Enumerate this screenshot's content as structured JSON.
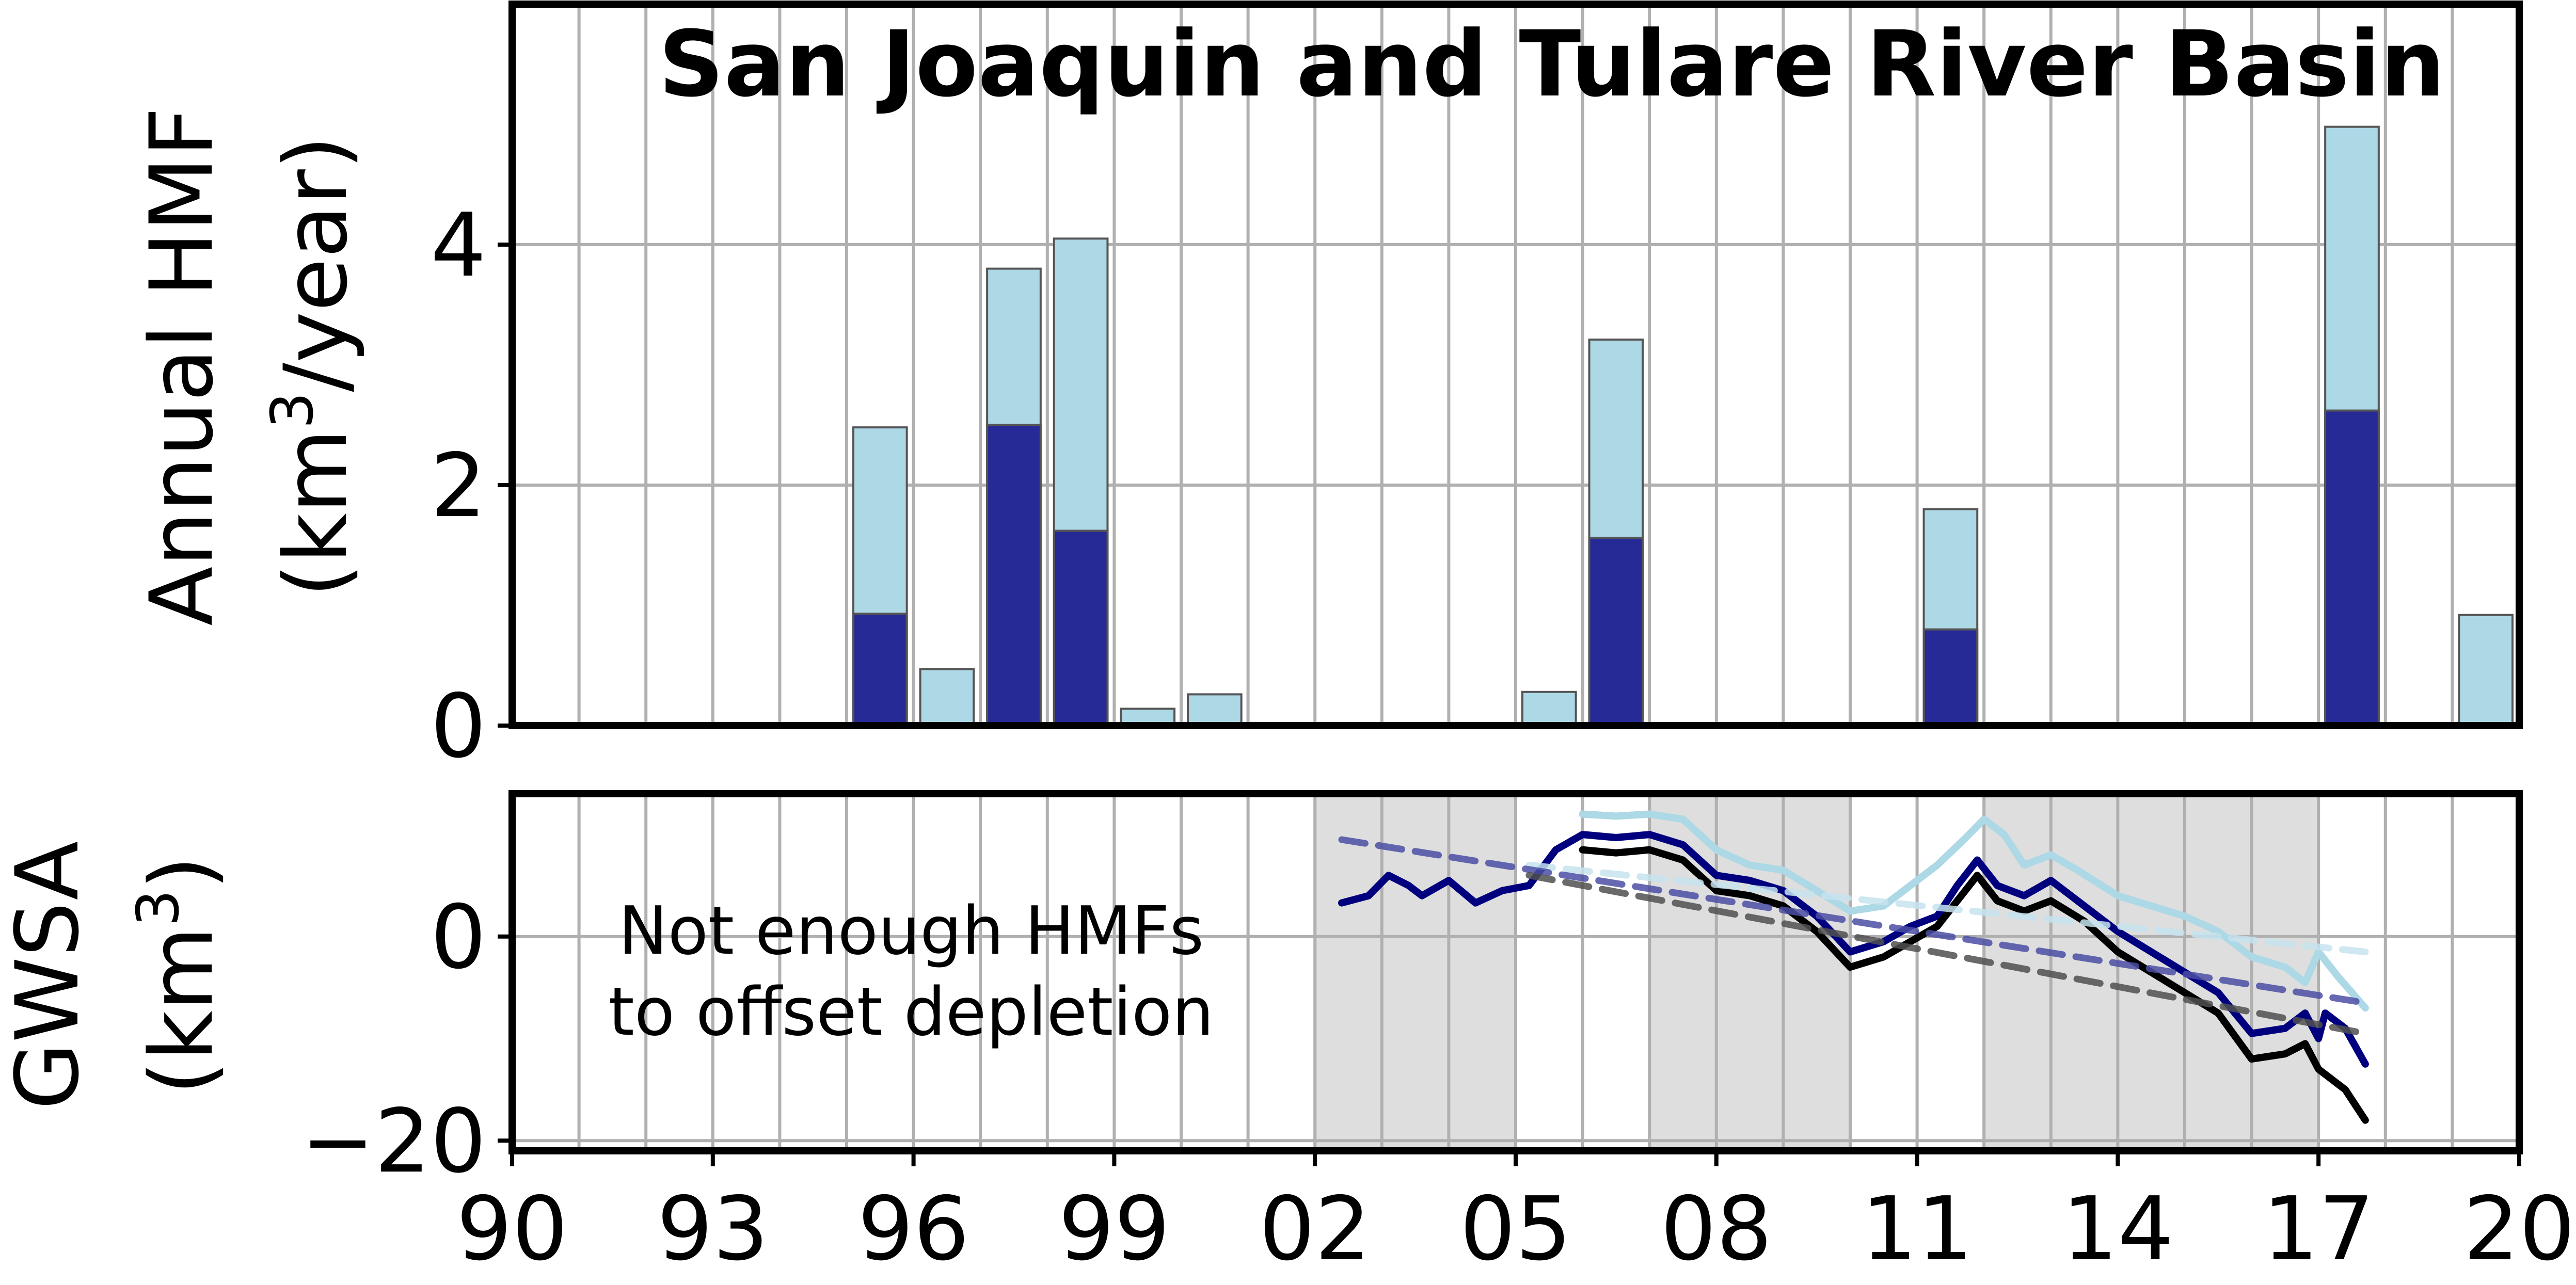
{
  "chart_data": [
    {
      "type": "bar",
      "title": "San Joaquin and Tulare River Basin",
      "ylabel_line1": "Annual HMF",
      "ylabel_line2_prefix": "(km",
      "ylabel_line2_sup": "3",
      "ylabel_line2_suffix": "/year)",
      "ylim": [
        0,
        6
      ],
      "yticks": [
        "0",
        "2",
        "4"
      ],
      "ytick_values": [
        0,
        2,
        4
      ],
      "xlim": [
        1990,
        2020
      ],
      "grid": true,
      "series": [
        {
          "color": "#add8e6",
          "bars": [
            {
              "x": 1995.5,
              "value": 2.48
            },
            {
              "x": 1996.5,
              "value": 0.47
            },
            {
              "x": 1997.5,
              "value": 3.8
            },
            {
              "x": 1998.5,
              "value": 4.05
            },
            {
              "x": 1999.5,
              "value": 0.14
            },
            {
              "x": 2000.5,
              "value": 0.26
            },
            {
              "x": 2005.5,
              "value": 0.28
            },
            {
              "x": 2006.5,
              "value": 3.21
            },
            {
              "x": 2011.5,
              "value": 1.8
            },
            {
              "x": 2017.5,
              "value": 4.98
            },
            {
              "x": 2019.5,
              "value": 0.92
            }
          ]
        },
        {
          "color": "#262a96",
          "bars": [
            {
              "x": 1995.5,
              "value": 0.93
            },
            {
              "x": 1997.5,
              "value": 2.5
            },
            {
              "x": 1998.5,
              "value": 1.62
            },
            {
              "x": 2006.5,
              "value": 1.56
            },
            {
              "x": 2011.5,
              "value": 0.8
            },
            {
              "x": 2017.5,
              "value": 2.62
            }
          ]
        }
      ]
    },
    {
      "type": "line",
      "ylabel_line1": "GWSA",
      "ylabel_line2_prefix": "(km",
      "ylabel_line2_sup": "3",
      "ylabel_line2_suffix": ")",
      "ylim": [
        -21,
        14
      ],
      "yticks": [
        "0",
        "−20"
      ],
      "ytick_values": [
        0,
        -20
      ],
      "xlim": [
        1990,
        2020
      ],
      "xticks": [
        "90",
        "93",
        "96",
        "99",
        "02",
        "05",
        "08",
        "11",
        "14",
        "17",
        "20"
      ],
      "xtick_values": [
        1990,
        1993,
        1996,
        1999,
        2002,
        2005,
        2008,
        2011,
        2014,
        2017,
        2020
      ],
      "grid": true,
      "annotation_line1": "Not enough HMFs",
      "annotation_line2": "to offset depletion",
      "shaded_periods": [
        [
          2002,
          2005
        ],
        [
          2007,
          2010
        ],
        [
          2012,
          2017
        ]
      ],
      "series": [
        {
          "color": "#add8e6",
          "points": [
            [
              2006.0,
              12.0
            ],
            [
              2006.5,
              11.8
            ],
            [
              2007.0,
              12.0
            ],
            [
              2007.5,
              11.5
            ],
            [
              2008.0,
              8.5
            ],
            [
              2008.5,
              7.0
            ],
            [
              2009.0,
              6.5
            ],
            [
              2009.5,
              4.5
            ],
            [
              2010.0,
              2.5
            ],
            [
              2010.5,
              3.0
            ],
            [
              2010.9,
              5.0
            ],
            [
              2011.3,
              7.0
            ],
            [
              2011.7,
              9.5
            ],
            [
              2012.0,
              11.5
            ],
            [
              2012.3,
              10.0
            ],
            [
              2012.6,
              7.0
            ],
            [
              2013.0,
              8.0
            ],
            [
              2013.4,
              6.5
            ],
            [
              2014.0,
              4.0
            ],
            [
              2014.5,
              3.0
            ],
            [
              2015.0,
              2.0
            ],
            [
              2015.5,
              0.5
            ],
            [
              2016.0,
              -2.0
            ],
            [
              2016.5,
              -3.0
            ],
            [
              2016.8,
              -4.5
            ],
            [
              2017.0,
              -1.5
            ],
            [
              2017.3,
              -4.0
            ],
            [
              2017.7,
              -7.0
            ]
          ]
        },
        {
          "color": "#00007f",
          "points": [
            [
              2002.4,
              3.3
            ],
            [
              2002.8,
              4.0
            ],
            [
              2003.1,
              6.0
            ],
            [
              2003.4,
              5.0
            ],
            [
              2003.6,
              4.0
            ],
            [
              2004.0,
              5.5
            ],
            [
              2004.4,
              3.3
            ],
            [
              2004.8,
              4.5
            ],
            [
              2005.2,
              5.0
            ],
            [
              2005.6,
              8.5
            ],
            [
              2006.0,
              10.0
            ],
            [
              2006.5,
              9.7
            ],
            [
              2007.0,
              10.0
            ],
            [
              2007.5,
              9.0
            ],
            [
              2008.0,
              6.0
            ],
            [
              2008.5,
              5.5
            ],
            [
              2009.0,
              4.5
            ],
            [
              2009.5,
              2.0
            ],
            [
              2010.0,
              -1.5
            ],
            [
              2010.5,
              -0.5
            ],
            [
              2010.9,
              1.0
            ],
            [
              2011.3,
              2.0
            ],
            [
              2011.6,
              5.0
            ],
            [
              2011.9,
              7.5
            ],
            [
              2012.2,
              5.0
            ],
            [
              2012.6,
              4.0
            ],
            [
              2013.0,
              5.5
            ],
            [
              2013.5,
              3.0
            ],
            [
              2014.0,
              0.5
            ],
            [
              2014.5,
              -1.5
            ],
            [
              2015.0,
              -3.5
            ],
            [
              2015.5,
              -5.5
            ],
            [
              2016.0,
              -9.5
            ],
            [
              2016.5,
              -9.0
            ],
            [
              2016.8,
              -7.5
            ],
            [
              2017.0,
              -10.0
            ],
            [
              2017.1,
              -7.5
            ],
            [
              2017.4,
              -9.0
            ],
            [
              2017.7,
              -12.5
            ]
          ]
        },
        {
          "color": "#000000",
          "points": [
            [
              2006.0,
              8.5
            ],
            [
              2006.5,
              8.2
            ],
            [
              2007.0,
              8.5
            ],
            [
              2007.5,
              7.5
            ],
            [
              2008.0,
              4.5
            ],
            [
              2008.5,
              4.0
            ],
            [
              2009.0,
              3.0
            ],
            [
              2009.5,
              0.5
            ],
            [
              2010.0,
              -3.0
            ],
            [
              2010.5,
              -2.0
            ],
            [
              2010.9,
              -0.5
            ],
            [
              2011.3,
              1.0
            ],
            [
              2011.6,
              3.5
            ],
            [
              2011.9,
              6.0
            ],
            [
              2012.2,
              3.5
            ],
            [
              2012.6,
              2.5
            ],
            [
              2013.0,
              3.5
            ],
            [
              2013.5,
              1.5
            ],
            [
              2014.0,
              -1.5
            ],
            [
              2014.5,
              -3.5
            ],
            [
              2015.0,
              -5.5
            ],
            [
              2015.5,
              -7.5
            ],
            [
              2016.0,
              -12.0
            ],
            [
              2016.5,
              -11.5
            ],
            [
              2016.8,
              -10.5
            ],
            [
              2017.0,
              -13.0
            ],
            [
              2017.4,
              -15.0
            ],
            [
              2017.7,
              -18.0
            ]
          ]
        },
        {
          "color": "#c6e3ee",
          "dashed": true,
          "points": [
            [
              2005.2,
              7.0
            ],
            [
              2017.7,
              -1.5
            ]
          ]
        },
        {
          "color": "#4b4fa5",
          "dashed": true,
          "points": [
            [
              2002.4,
              9.5
            ],
            [
              2017.7,
              -6.5
            ]
          ]
        },
        {
          "color": "#505050",
          "dashed": true,
          "points": [
            [
              2005.2,
              6.0
            ],
            [
              2017.7,
              -9.5
            ]
          ]
        }
      ]
    }
  ]
}
